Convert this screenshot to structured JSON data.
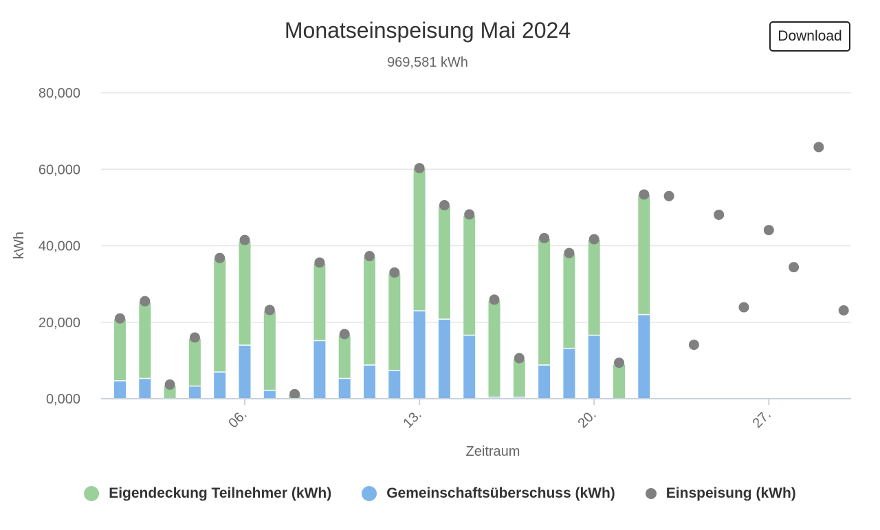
{
  "title": "Monatseinspeisung Mai 2024",
  "subtitle": "969,581 kWh",
  "download_label": "Download",
  "colors": {
    "eigendeckung": "#9bd09b",
    "gemeinschaft": "#7eb4ea",
    "einspeisung": "#808080",
    "grid": "#e6e6e6",
    "axis_text": "#666666"
  },
  "legend": [
    {
      "label": "Eigendeckung Teilnehmer (kWh)",
      "color": "#9bd09b"
    },
    {
      "label": "Gemeinschaftsüberschuss (kWh)",
      "color": "#7eb4ea"
    },
    {
      "label": "Einspeisung (kWh)",
      "color": "#808080"
    }
  ],
  "chart_data": {
    "type": "bar",
    "stacked": true,
    "title": "Monatseinspeisung Mai 2024",
    "subtitle": "969,581 kWh",
    "xlabel": "Zeitraum",
    "ylabel": "kWh",
    "ylim": [
      0,
      80000
    ],
    "y_ticks": [
      0,
      20000,
      40000,
      60000,
      80000
    ],
    "y_tick_labels": [
      "0,000",
      "20,000",
      "40,000",
      "60,000",
      "80,000"
    ],
    "x_days": [
      1,
      2,
      3,
      4,
      5,
      6,
      7,
      8,
      9,
      10,
      11,
      12,
      13,
      14,
      15,
      16,
      17,
      18,
      19,
      20,
      21,
      22,
      23,
      24,
      25,
      26,
      27,
      28,
      29,
      30,
      31
    ],
    "x_tick_days": [
      6,
      13,
      20,
      27
    ],
    "x_tick_labels": [
      "06.",
      "13.",
      "20.",
      "27."
    ],
    "grid": true,
    "legend_position": "bottom",
    "series": [
      {
        "name": "Gemeinschaftsüberschuss (kWh)",
        "kind": "bar",
        "values": [
          4700,
          5300,
          0,
          3300,
          7000,
          14000,
          2200,
          0,
          15200,
          5300,
          8800,
          7400,
          23000,
          20800,
          16600,
          400,
          400,
          8800,
          13200,
          16600,
          0,
          22000,
          null,
          null,
          null,
          null,
          null,
          null,
          null,
          null,
          null
        ]
      },
      {
        "name": "Eigendeckung Teilnehmer (kWh)",
        "kind": "bar",
        "values": [
          16100,
          19900,
          3300,
          12400,
          29500,
          27100,
          20700,
          900,
          20100,
          11300,
          28200,
          25300,
          37200,
          29500,
          31300,
          25200,
          9800,
          33000,
          24700,
          24900,
          8900,
          31200,
          null,
          null,
          null,
          null,
          null,
          null,
          null,
          null,
          null
        ]
      },
      {
        "name": "Einspeisung (kWh)",
        "kind": "scatter",
        "values": [
          21000,
          25500,
          3700,
          16000,
          36800,
          41500,
          23200,
          1200,
          35600,
          16900,
          37300,
          33000,
          60300,
          50600,
          48200,
          25900,
          10600,
          42000,
          38100,
          41700,
          9400,
          53400,
          53000,
          14100,
          48100,
          23900,
          44100,
          34400,
          65800,
          23100,
          null
        ]
      }
    ]
  }
}
